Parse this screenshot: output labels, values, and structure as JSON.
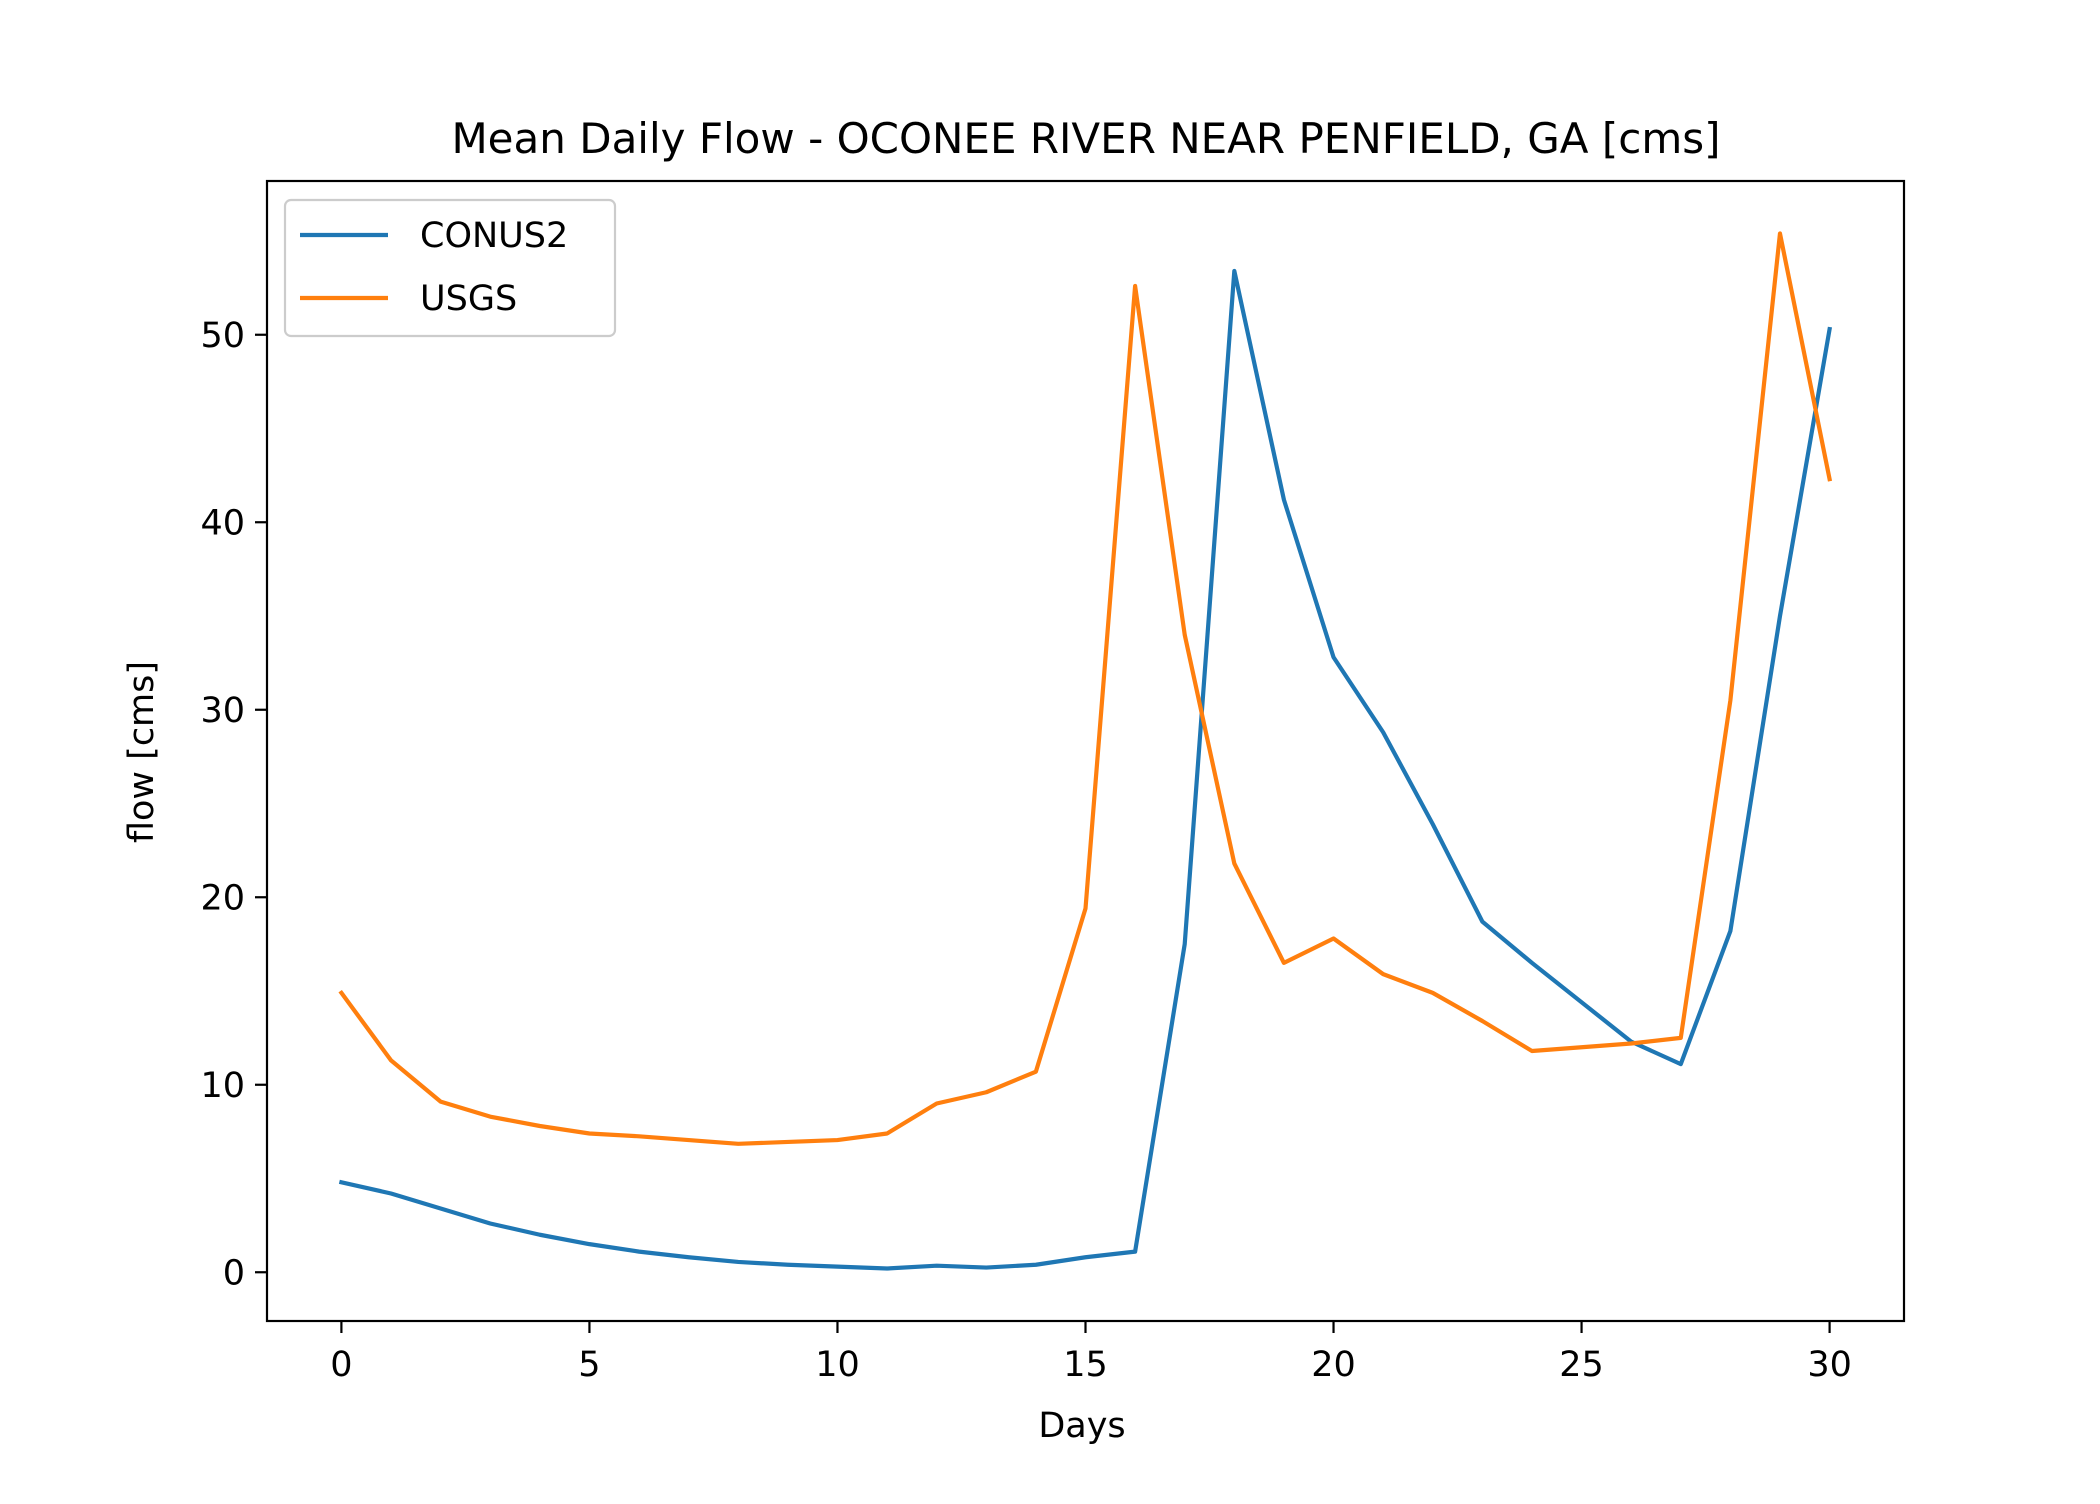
{
  "chart_data": {
    "type": "line",
    "title": "Mean Daily Flow - OCONEE RIVER NEAR PENFIELD, GA [cms]",
    "xlabel": "Days",
    "ylabel": "flow [cms]",
    "xlim": [
      -1.5,
      31.5
    ],
    "ylim": [
      -2.6,
      58.2
    ],
    "xticks": [
      0,
      5,
      10,
      15,
      20,
      25,
      30
    ],
    "yticks": [
      0,
      10,
      20,
      30,
      40,
      50
    ],
    "grid": false,
    "legend_position": "upper left",
    "x": [
      0,
      1,
      2,
      3,
      4,
      5,
      6,
      7,
      8,
      9,
      10,
      11,
      12,
      13,
      14,
      15,
      16,
      17,
      18,
      19,
      20,
      21,
      22,
      23,
      24,
      25,
      26,
      27,
      28,
      29,
      30
    ],
    "series": [
      {
        "name": "CONUS2",
        "color": "#1f77b4",
        "values": [
          4.8,
          4.2,
          3.4,
          2.6,
          2.0,
          1.5,
          1.1,
          0.8,
          0.55,
          0.4,
          0.3,
          0.2,
          0.35,
          0.25,
          0.4,
          0.8,
          1.1,
          17.5,
          53.4,
          41.2,
          32.8,
          28.8,
          23.9,
          18.7,
          16.5,
          14.4,
          12.3,
          11.1,
          18.2,
          35.0,
          50.3
        ]
      },
      {
        "name": "USGS",
        "color": "#ff7f0e",
        "values": [
          14.9,
          11.3,
          9.1,
          8.3,
          7.8,
          7.4,
          7.25,
          7.05,
          6.85,
          6.95,
          7.05,
          7.4,
          9.0,
          9.6,
          10.7,
          19.4,
          52.6,
          34.0,
          21.8,
          16.5,
          17.8,
          15.9,
          14.9,
          13.4,
          11.8,
          12.0,
          12.2,
          12.5,
          30.5,
          55.4,
          42.3
        ]
      }
    ]
  }
}
